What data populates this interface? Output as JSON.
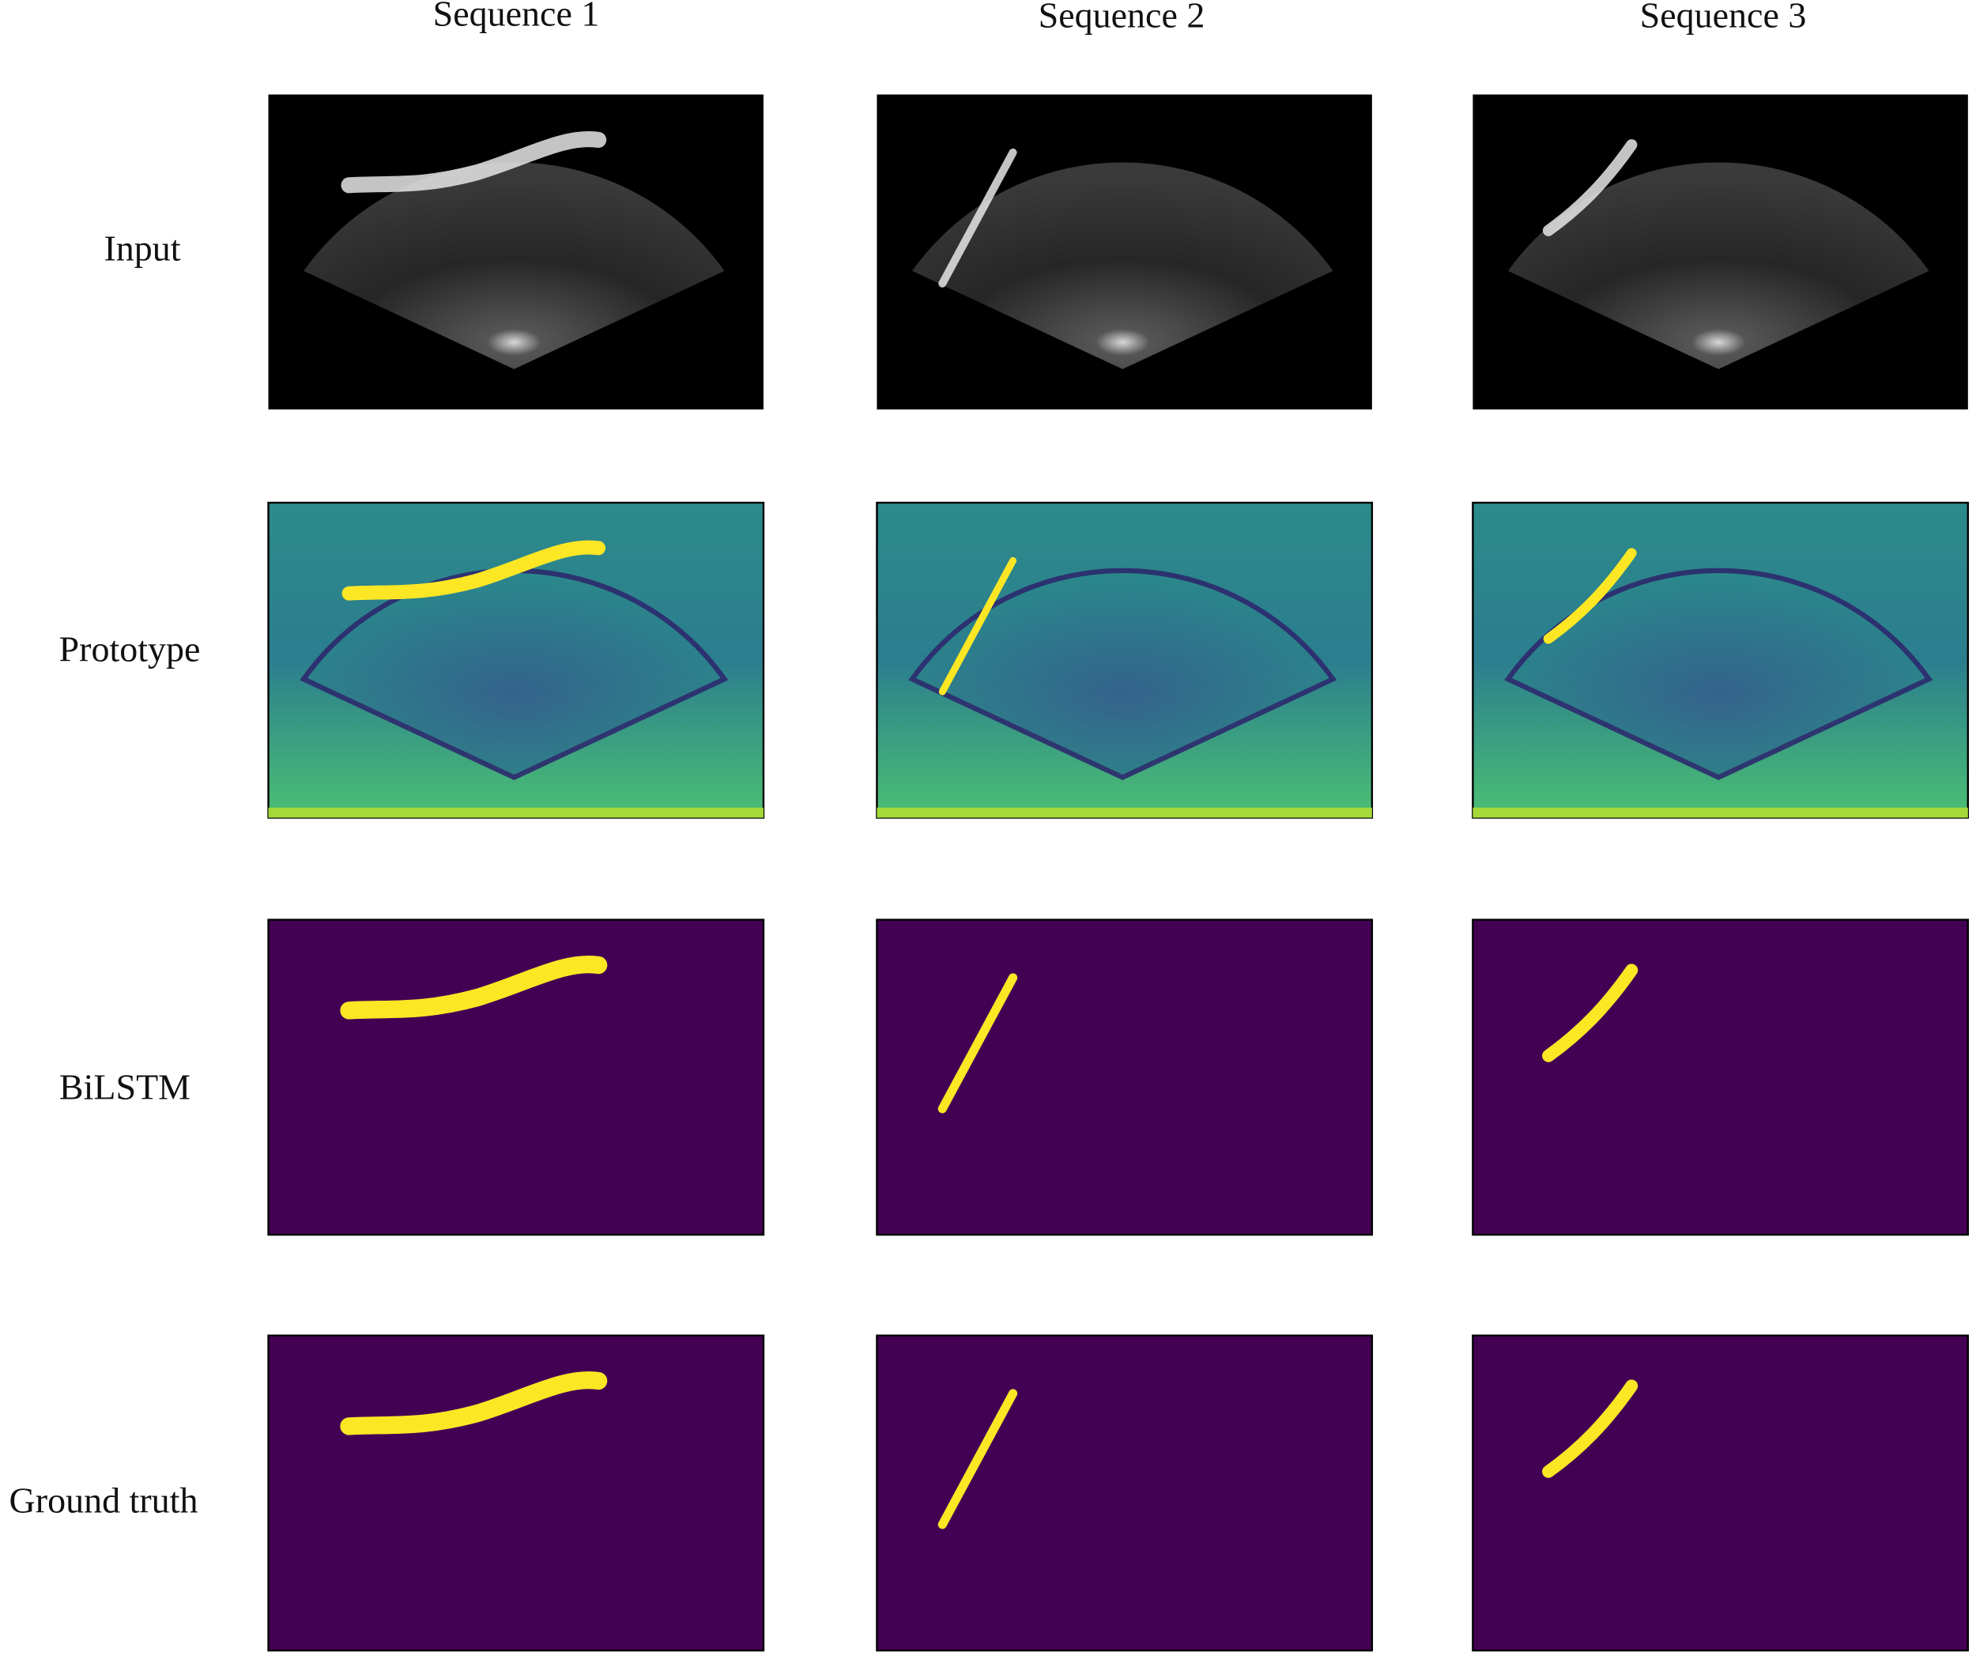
{
  "column_headers": [
    "Sequence 1",
    "Sequence 2",
    "Sequence 3"
  ],
  "row_labels": [
    "Input",
    "Prototype",
    "BiLSTM",
    "Ground truth"
  ]
}
